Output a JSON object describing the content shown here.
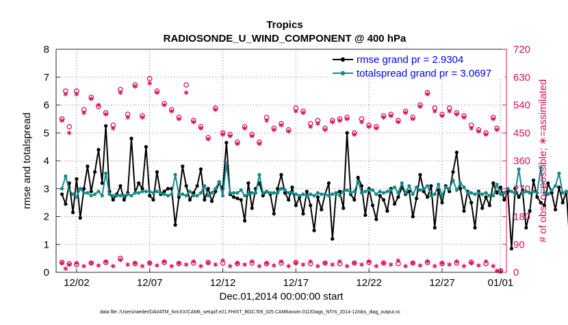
{
  "chart_data": {
    "type": "line",
    "title": "Tropics",
    "subtitle": "RADIOSONDE_U_WIND_COMPONENT @ 400 hPa",
    "xlabel": "Dec.01,2014 00:00:00 start",
    "ylabel_left": "rmse and totalspread",
    "ylabel_right": "# of obs: o=possible; ∗=assimilated",
    "footnote": "data file: /Users/raeder/DAI/ATM_forcXX/CAM6_setup/f.e21.FHIST_BGC.f09_025.CAM6assim.011/Diags_NTrS_2014-12/obs_diag_output.nc",
    "xlim": [
      0.6,
      31.4
    ],
    "ylim_left": [
      0,
      8
    ],
    "ylim_right": [
      0,
      720
    ],
    "x_ticks": [
      {
        "x": 2,
        "label": "12/02"
      },
      {
        "x": 7,
        "label": "12/07"
      },
      {
        "x": 12,
        "label": "12/12"
      },
      {
        "x": 17,
        "label": "12/17"
      },
      {
        "x": 22,
        "label": "12/22"
      },
      {
        "x": 27,
        "label": "12/27"
      },
      {
        "x": 31,
        "label": "01/01"
      }
    ],
    "y_ticks_left": [
      "0",
      "1",
      "2",
      "3",
      "4",
      "5",
      "6",
      "7",
      "8"
    ],
    "y_ticks_right": [
      "0",
      "90",
      "180",
      "270",
      "360",
      "450",
      "540",
      "630",
      "720"
    ],
    "colors": {
      "rmse": "#000000",
      "spread": "#138a89",
      "obs": "#d9105a",
      "legend_text": "#0000ff"
    },
    "series": [
      {
        "name": "rmse grand pr = 2.9304",
        "axis": "left",
        "x_start": 1,
        "x_step": 0.25,
        "values": [
          2.8,
          2.45,
          3.2,
          2.15,
          3.35,
          1.95,
          3.0,
          3.8,
          2.9,
          3.6,
          4.4,
          3.2,
          5.25,
          2.9,
          2.6,
          2.8,
          3.1,
          2.6,
          2.85,
          4.8,
          2.85,
          3.2,
          3.0,
          4.5,
          2.75,
          2.6,
          3.6,
          2.8,
          2.9,
          3.0,
          3.0,
          1.7,
          2.7,
          3.8,
          3.1,
          2.6,
          2.85,
          3.1,
          3.7,
          2.6,
          3.0,
          2.55,
          2.9,
          3.2,
          3.0,
          4.65,
          2.8,
          2.7,
          2.65,
          2.6,
          1.85,
          3.2,
          2.3,
          3.0,
          3.2,
          2.75,
          2.9,
          2.8,
          2.1,
          3.0,
          3.5,
          2.85,
          2.6,
          3.05,
          2.4,
          2.7,
          2.1,
          2.9,
          2.4,
          1.5,
          2.7,
          2.25,
          2.8,
          3.2,
          1.2,
          2.85,
          2.9,
          2.3,
          5.0,
          2.8,
          2.6,
          3.4,
          3.1,
          2.05,
          3.0,
          2.4,
          1.9,
          2.75,
          2.6,
          2.2,
          3.0,
          2.45,
          2.7,
          3.05,
          2.8,
          2.9,
          2.0,
          2.65,
          3.5,
          2.9,
          2.7,
          3.1,
          1.6,
          2.95,
          2.5,
          3.1,
          2.9,
          3.6,
          4.3,
          3.0,
          2.2,
          2.9,
          2.5,
          1.6,
          2.9,
          2.3,
          2.7,
          2.4,
          3.2,
          2.85,
          3.05,
          2.6,
          2.9,
          0.85,
          3.0,
          2.7,
          2.95,
          1.6,
          2.2,
          3.3,
          2.7,
          2.5,
          2.4,
          3.2,
          2.85,
          2.25,
          3.05,
          2.5,
          2.9,
          0.95
        ]
      },
      {
        "name": "totalspread grand pr = 3.0697",
        "axis": "left",
        "x_start": 1,
        "x_step": 0.25,
        "values": [
          3.0,
          3.45,
          2.95,
          2.8,
          2.7,
          3.0,
          2.85,
          2.85,
          2.75,
          2.8,
          2.9,
          2.75,
          3.55,
          2.8,
          2.75,
          2.75,
          2.75,
          2.75,
          2.8,
          2.75,
          2.85,
          2.85,
          2.9,
          2.9,
          2.9,
          2.85,
          2.9,
          2.85,
          2.8,
          2.75,
          2.8,
          3.5,
          2.8,
          2.8,
          2.75,
          2.9,
          2.75,
          2.75,
          2.85,
          3.1,
          2.75,
          2.85,
          3.0,
          3.25,
          2.75,
          3.9,
          2.85,
          2.85,
          2.85,
          2.95,
          2.75,
          2.8,
          2.85,
          2.85,
          3.5,
          2.85,
          2.9,
          2.85,
          2.85,
          2.85,
          3.0,
          2.95,
          2.85,
          2.85,
          2.8,
          2.75,
          2.8,
          2.75,
          2.8,
          2.75,
          2.85,
          2.8,
          2.8,
          2.75,
          2.8,
          2.85,
          2.75,
          2.9,
          2.95,
          2.85,
          2.9,
          3.25,
          2.85,
          2.9,
          2.95,
          2.95,
          2.8,
          2.9,
          2.85,
          2.9,
          2.95,
          3.05,
          2.85,
          3.2,
          2.85,
          3.1,
          2.8,
          3.05,
          2.95,
          3.0,
          3.1,
          2.75,
          2.8,
          3.15,
          2.75,
          3.05,
          3.0,
          3.3,
          2.95,
          3.2,
          3.05,
          2.85,
          2.85,
          2.8,
          2.85,
          2.8,
          2.85,
          2.75,
          2.75,
          3.15,
          2.8,
          2.85,
          3.0,
          2.9,
          2.8,
          3.7,
          2.8,
          2.9,
          2.85,
          2.9,
          2.85,
          3.75,
          2.85,
          2.8,
          2.95,
          3.1,
          3.55,
          2.85,
          2.9,
          2.8,
          2.85,
          4.0
        ]
      },
      {
        "name": "# obs possible",
        "axis": "right",
        "marker": "o",
        "points": [
          [
            1,
            495
          ],
          [
            1.25,
            585
          ],
          [
            1.5,
            470
          ],
          [
            2,
            585
          ],
          [
            2.5,
            525
          ],
          [
            3,
            565
          ],
          [
            3.5,
            535
          ],
          [
            4,
            515
          ],
          [
            4.5,
            475
          ],
          [
            5,
            590
          ],
          [
            5.5,
            510
          ],
          [
            6,
            605
          ],
          [
            6.5,
            505
          ],
          [
            7,
            625
          ],
          [
            7.5,
            585
          ],
          [
            8,
            545
          ],
          [
            8.5,
            525
          ],
          [
            9,
            500
          ],
          [
            9.5,
            605
          ],
          [
            10,
            490
          ],
          [
            10.5,
            470
          ],
          [
            11,
            435
          ],
          [
            11.5,
            530
          ],
          [
            12,
            450
          ],
          [
            12.5,
            445
          ],
          [
            13,
            420
          ],
          [
            13.5,
            470
          ],
          [
            14,
            445
          ],
          [
            14.5,
            420
          ],
          [
            15,
            500
          ],
          [
            15.5,
            465
          ],
          [
            16,
            480
          ],
          [
            16.5,
            460
          ],
          [
            17,
            530
          ],
          [
            17.5,
            520
          ],
          [
            18,
            480
          ],
          [
            18.5,
            490
          ],
          [
            19,
            465
          ],
          [
            19.5,
            490
          ],
          [
            20,
            495
          ],
          [
            20.5,
            500
          ],
          [
            21,
            450
          ],
          [
            21.5,
            495
          ],
          [
            22,
            475
          ],
          [
            22.5,
            470
          ],
          [
            23,
            505
          ],
          [
            23.5,
            510
          ],
          [
            24,
            490
          ],
          [
            24.5,
            520
          ],
          [
            25,
            500
          ],
          [
            25.5,
            540
          ],
          [
            26,
            580
          ],
          [
            26.5,
            530
          ],
          [
            27,
            510
          ],
          [
            27.5,
            530
          ],
          [
            28,
            515
          ],
          [
            28.5,
            505
          ],
          [
            29,
            475
          ],
          [
            29.5,
            460
          ],
          [
            30,
            450
          ],
          [
            30.5,
            500
          ],
          [
            30.75,
            465
          ]
        ]
      },
      {
        "name": "# obs assimilated",
        "axis": "right",
        "marker": "*",
        "points": [
          [
            1,
            490
          ],
          [
            1.25,
            575
          ],
          [
            1.5,
            450
          ],
          [
            2,
            575
          ],
          [
            2.5,
            515
          ],
          [
            3,
            560
          ],
          [
            3.5,
            540
          ],
          [
            4,
            510
          ],
          [
            4.5,
            465
          ],
          [
            5,
            580
          ],
          [
            5.5,
            500
          ],
          [
            6,
            600
          ],
          [
            6.5,
            500
          ],
          [
            7,
            610
          ],
          [
            7.5,
            580
          ],
          [
            8,
            540
          ],
          [
            8.5,
            520
          ],
          [
            9,
            495
          ],
          [
            9.5,
            580
          ],
          [
            10,
            485
          ],
          [
            10.5,
            465
          ],
          [
            11,
            430
          ],
          [
            11.5,
            525
          ],
          [
            12,
            445
          ],
          [
            12.5,
            440
          ],
          [
            13,
            415
          ],
          [
            13.5,
            465
          ],
          [
            14,
            440
          ],
          [
            14.5,
            415
          ],
          [
            15,
            490
          ],
          [
            15.5,
            460
          ],
          [
            16,
            475
          ],
          [
            16.5,
            455
          ],
          [
            17,
            520
          ],
          [
            17.5,
            515
          ],
          [
            18,
            470
          ],
          [
            18.5,
            480
          ],
          [
            19,
            460
          ],
          [
            19.5,
            485
          ],
          [
            20,
            490
          ],
          [
            20.5,
            495
          ],
          [
            21,
            445
          ],
          [
            21.5,
            485
          ],
          [
            22,
            470
          ],
          [
            22.5,
            465
          ],
          [
            23,
            500
          ],
          [
            23.5,
            505
          ],
          [
            24,
            485
          ],
          [
            24.5,
            515
          ],
          [
            25,
            495
          ],
          [
            25.5,
            535
          ],
          [
            26,
            575
          ],
          [
            26.5,
            520
          ],
          [
            27,
            505
          ],
          [
            27.5,
            520
          ],
          [
            28,
            510
          ],
          [
            28.5,
            500
          ],
          [
            29,
            465
          ],
          [
            29.5,
            455
          ],
          [
            30,
            445
          ],
          [
            30.5,
            495
          ],
          [
            30.75,
            460
          ],
          [
            1,
            30
          ],
          [
            1.25,
            12
          ],
          [
            1.5,
            25
          ],
          [
            2,
            30
          ],
          [
            2.5,
            20
          ],
          [
            3,
            30
          ],
          [
            3.5,
            22
          ],
          [
            4,
            35
          ],
          [
            4.5,
            20
          ],
          [
            5,
            40
          ],
          [
            5.5,
            25
          ],
          [
            6,
            30
          ],
          [
            6.5,
            20
          ],
          [
            7,
            30
          ],
          [
            7.5,
            22
          ],
          [
            8,
            35
          ],
          [
            8.5,
            20
          ],
          [
            9,
            30
          ],
          [
            9.5,
            25
          ],
          [
            10,
            35
          ],
          [
            10.5,
            20
          ],
          [
            11,
            30
          ],
          [
            11.5,
            25
          ],
          [
            12,
            38
          ],
          [
            12.5,
            20
          ],
          [
            13,
            30
          ],
          [
            13.5,
            25
          ],
          [
            14,
            35
          ],
          [
            14.5,
            20
          ],
          [
            15,
            30
          ],
          [
            15.5,
            22
          ],
          [
            16,
            35
          ],
          [
            16.5,
            20
          ],
          [
            17,
            30
          ],
          [
            17.5,
            25
          ],
          [
            18,
            35
          ],
          [
            18.5,
            20
          ],
          [
            19,
            30
          ],
          [
            19.5,
            25
          ],
          [
            20,
            35
          ],
          [
            20.5,
            20
          ],
          [
            21,
            30
          ],
          [
            21.5,
            25
          ],
          [
            22,
            35
          ],
          [
            22.5,
            20
          ],
          [
            23,
            30
          ],
          [
            23.5,
            25
          ],
          [
            24,
            38
          ],
          [
            24.5,
            20
          ],
          [
            25,
            30
          ],
          [
            25.5,
            22
          ],
          [
            26,
            35
          ],
          [
            26.5,
            20
          ],
          [
            27,
            30
          ],
          [
            27.5,
            25
          ],
          [
            28,
            35
          ],
          [
            28.5,
            20
          ],
          [
            29,
            30
          ],
          [
            29.5,
            22
          ],
          [
            30,
            35
          ],
          [
            30.5,
            20
          ],
          [
            30.75,
            5
          ],
          [
            31,
            3
          ]
        ]
      },
      {
        "name": "# obs possible (low)",
        "axis": "right",
        "marker": "o",
        "points": [
          [
            1,
            32
          ],
          [
            1.5,
            28
          ],
          [
            2,
            25
          ],
          [
            3,
            30
          ],
          [
            4,
            32
          ],
          [
            5,
            45
          ],
          [
            6,
            28
          ],
          [
            7,
            30
          ],
          [
            8,
            32
          ],
          [
            9,
            28
          ],
          [
            10,
            30
          ],
          [
            11,
            32
          ],
          [
            12,
            30
          ],
          [
            13,
            28
          ],
          [
            14,
            30
          ],
          [
            15,
            28
          ],
          [
            16,
            30
          ],
          [
            17,
            32
          ],
          [
            18,
            28
          ],
          [
            19,
            30
          ],
          [
            20,
            28
          ],
          [
            21,
            30
          ],
          [
            22,
            32
          ],
          [
            23,
            30
          ],
          [
            24,
            28
          ],
          [
            25,
            30
          ],
          [
            26,
            32
          ],
          [
            27,
            28
          ],
          [
            28,
            30
          ],
          [
            29,
            32
          ],
          [
            30,
            28
          ],
          [
            31,
            5
          ]
        ]
      }
    ],
    "legend": [
      {
        "label": "rmse grand pr = 2.9304",
        "series": "rmse"
      },
      {
        "label": "totalspread grand pr = 3.0697",
        "series": "spread"
      }
    ]
  }
}
